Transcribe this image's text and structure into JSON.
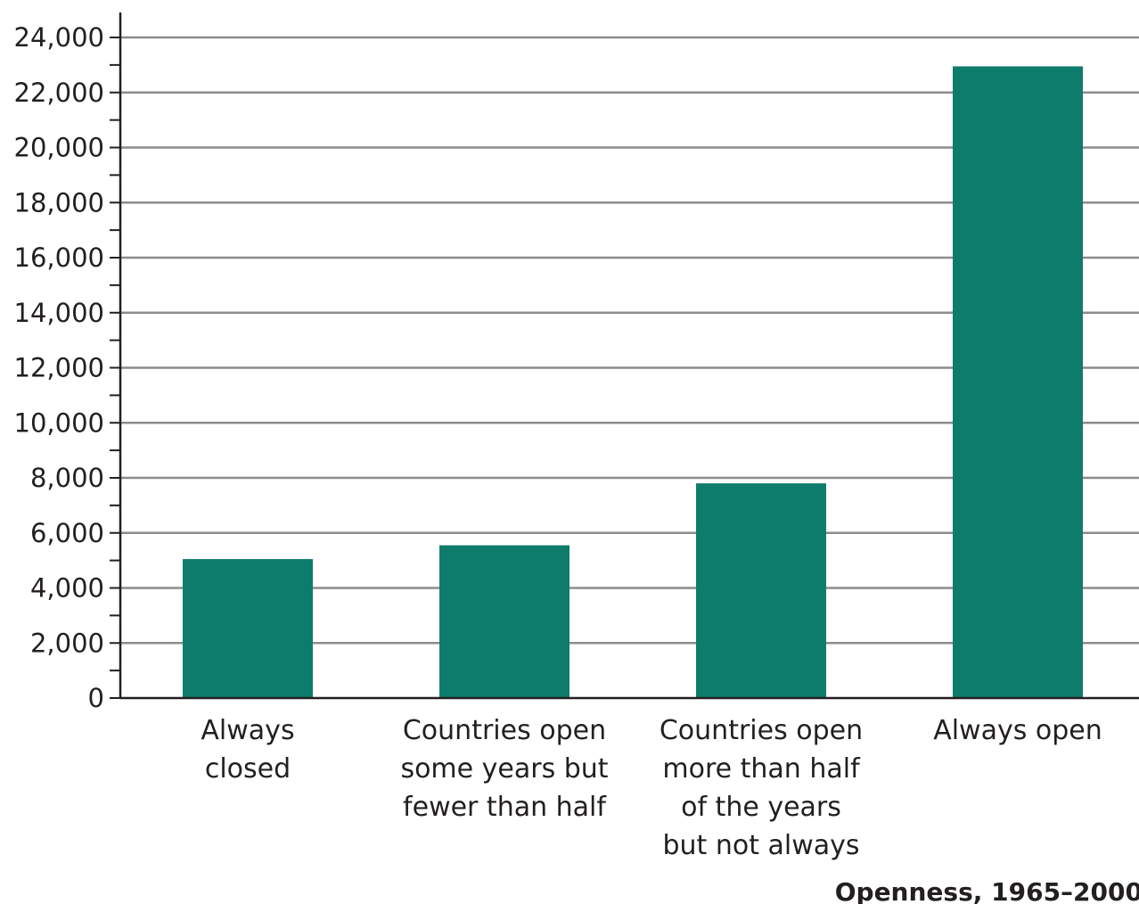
{
  "chart_data": {
    "type": "bar",
    "title": "",
    "xlabel": "Openness, 1965–2000",
    "ylabel": "",
    "ylim": [
      0,
      24000
    ],
    "yticks": [
      0,
      2000,
      4000,
      6000,
      8000,
      10000,
      12000,
      14000,
      16000,
      18000,
      20000,
      22000,
      24000
    ],
    "ytick_labels": [
      "0",
      "2,000",
      "4,000",
      "6,000",
      "8,000",
      "10,000",
      "12,000",
      "14,000",
      "16,000",
      "18,000",
      "20,000",
      "22,000",
      "24,000"
    ],
    "categories": [
      [
        "Always",
        "closed"
      ],
      [
        "Countries open",
        "some years but",
        "fewer than half"
      ],
      [
        "Countries open",
        "more than half",
        "of the years",
        "but not always"
      ],
      [
        "Always open"
      ]
    ],
    "values": [
      5050,
      5550,
      7800,
      22950
    ],
    "grid": true,
    "bar_color": "#0e7c6b",
    "grid_color": "#8c8c8c",
    "axis_color": "#231f20"
  }
}
